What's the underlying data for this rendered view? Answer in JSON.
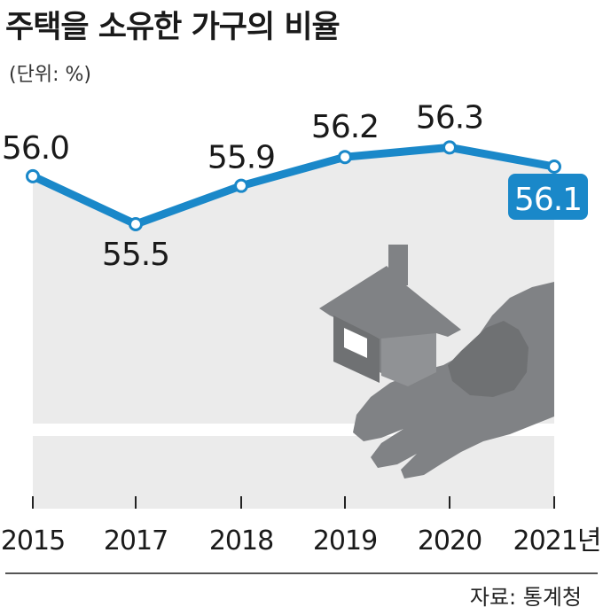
{
  "title": "주택을 소유한 가구의 비율",
  "unit": "(단위: %)",
  "source": "자료: 통계청",
  "colors": {
    "line": "#1a88c9",
    "area": "#ebebeb",
    "icon": "#808285",
    "axis": "#222222"
  },
  "icon": "hand-holding-house-icon",
  "chart_data": {
    "type": "line",
    "categories": [
      "2015",
      "2017",
      "2018",
      "2019",
      "2020",
      "2021년"
    ],
    "series": [
      {
        "values": [
          56.0,
          55.5,
          55.9,
          56.2,
          56.3,
          56.1
        ],
        "labels": [
          "56.0",
          "55.5",
          "55.9",
          "56.2",
          "56.3",
          "56.1"
        ]
      }
    ],
    "highlight_last": true,
    "title": "주택을 소유한 가구의 비율",
    "ylabel": "",
    "xlabel": ""
  }
}
